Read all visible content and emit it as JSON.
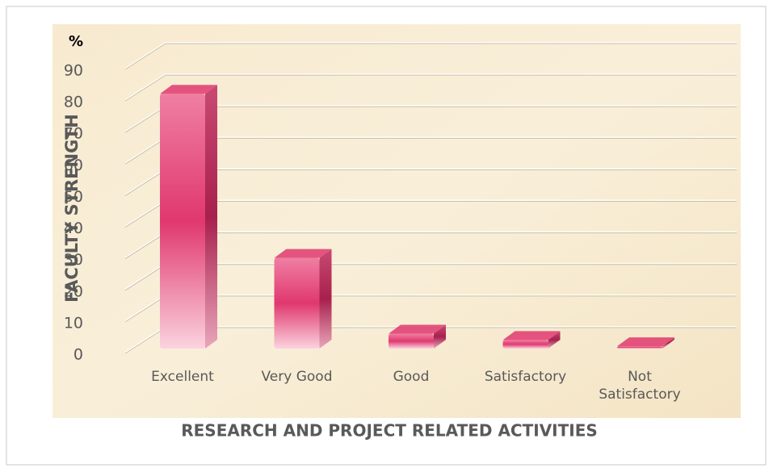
{
  "chart_data": {
    "type": "bar3d",
    "y_unit": "%",
    "y_label": "FACULTY STRENGTH",
    "x_label": "RESEARCH AND PROJECT RELATED ACTIVITIES",
    "categories": [
      "Excellent",
      "Very Good",
      "Good",
      "Satisfactory",
      "Not Satisfactory"
    ],
    "values": [
      82,
      30,
      6,
      4,
      2
    ],
    "color": "#e0386f",
    "ylim": [
      0,
      90
    ],
    "yticks": [
      0,
      10,
      20,
      30,
      40,
      50,
      60,
      70,
      80,
      90
    ],
    "grid": true
  }
}
